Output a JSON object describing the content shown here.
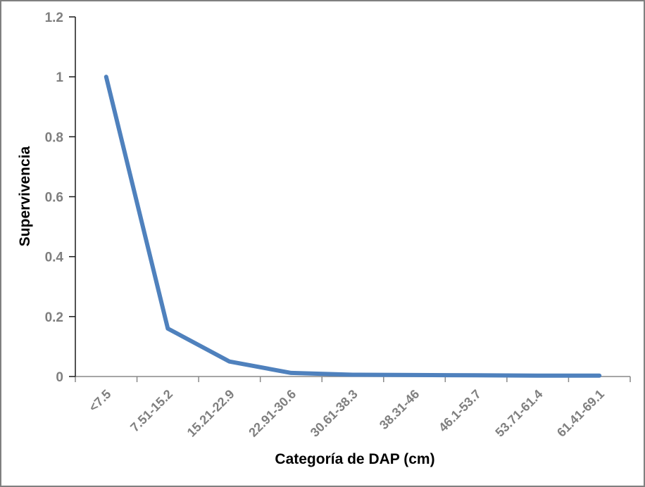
{
  "window": {
    "background_color": "#ffffff",
    "frame_border_color": "#808080"
  },
  "chart_data": {
    "type": "line",
    "title": "",
    "xlabel": "Categoría de DAP (cm)",
    "ylabel": "Supervivencia",
    "categories": [
      "<7.5",
      "7.51-15.2",
      "15.21-22.9",
      "22.91-30.6",
      "30.61-38.3",
      "38.31-46",
      "46.1-53.7",
      "53.71-61.4",
      "61.41-69.1"
    ],
    "values": [
      1,
      0.16,
      0.05,
      0.012,
      0.006,
      0.005,
      0.004,
      0.003,
      0.003
    ],
    "ylim": [
      0,
      1.2
    ],
    "ytick_step": 0.2,
    "ytick_labels": [
      "0",
      "0.2",
      "0.4",
      "0.6",
      "0.8",
      "1",
      "1.2"
    ],
    "grid": false,
    "legend": "none",
    "line_color": "#4f81bd",
    "line_width": 6,
    "y_axis_color": "#1a1a1a",
    "x_axis_color": "#898989",
    "tick_label_color": "#7f7f7f",
    "x_tick_label_rotation_deg": -45
  }
}
